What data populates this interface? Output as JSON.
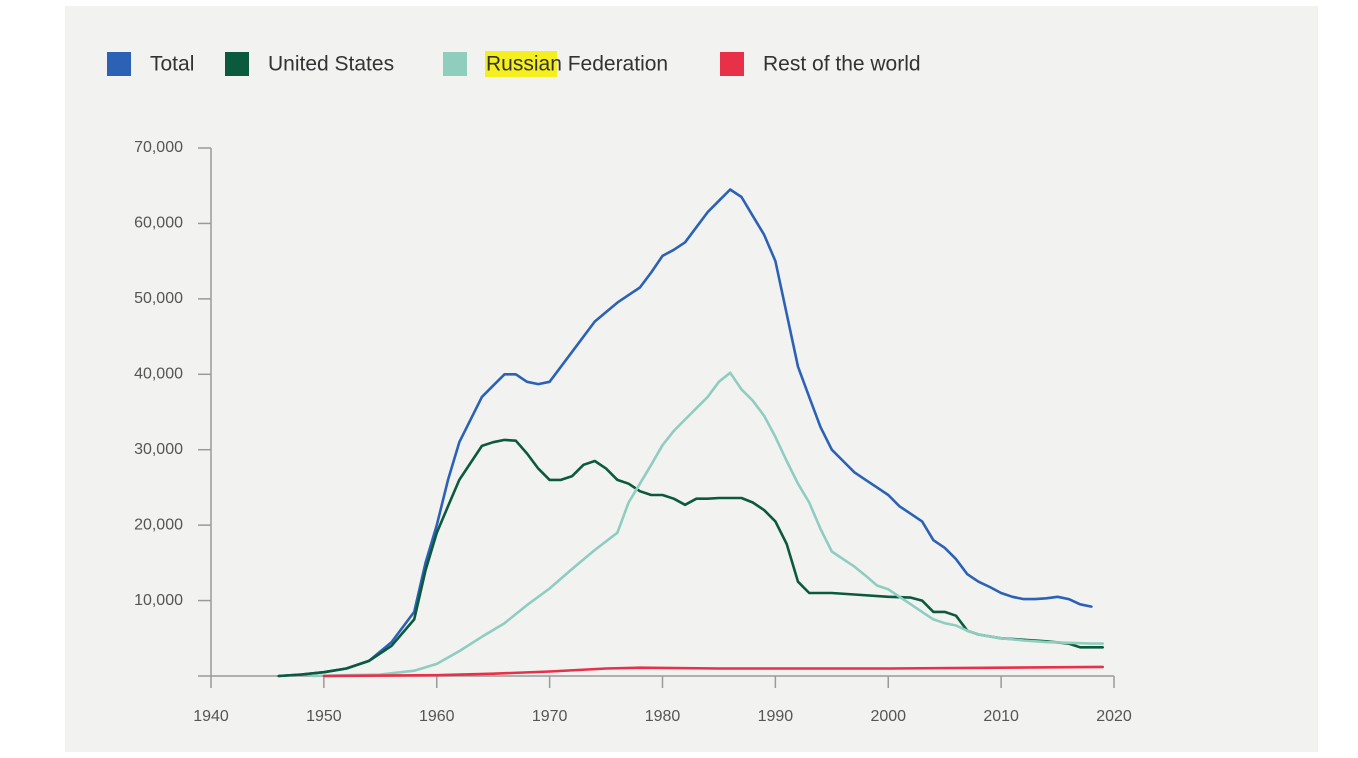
{
  "chart_data": {
    "type": "line",
    "xlim": [
      1940,
      2020
    ],
    "xticks": [
      1940,
      1950,
      1960,
      1970,
      1980,
      1990,
      2000,
      2010,
      2020
    ],
    "ylim": [
      0,
      70000
    ],
    "yticks": [
      {
        "value": 10000,
        "label": "10,000"
      },
      {
        "value": 20000,
        "label": "20,000"
      },
      {
        "value": 30000,
        "label": "30,000"
      },
      {
        "value": 40000,
        "label": "40,000"
      },
      {
        "value": 50000,
        "label": "50,000"
      },
      {
        "value": 60000,
        "label": "60,000"
      },
      {
        "value": 70000,
        "label": "70,000"
      }
    ],
    "legend": "top-left",
    "series": [
      {
        "name": "Total",
        "color": "#2b62b5",
        "x": [
          1946,
          1948,
          1950,
          1952,
          1954,
          1956,
          1958,
          1959,
          1960,
          1961,
          1962,
          1964,
          1965,
          1966,
          1967,
          1968,
          1969,
          1970,
          1972,
          1974,
          1976,
          1978,
          1979,
          1980,
          1981,
          1982,
          1983,
          1984,
          1985,
          1986,
          1987,
          1988,
          1989,
          1990,
          1991,
          1992,
          1993,
          1994,
          1995,
          1996,
          1997,
          1998,
          1999,
          2000,
          2001,
          2002,
          2003,
          2004,
          2005,
          2006,
          2007,
          2008,
          2009,
          2010,
          2011,
          2012,
          2013,
          2014,
          2015,
          2016,
          2017,
          2018
        ],
        "values": [
          0,
          200,
          500,
          1000,
          2000,
          4500,
          8500,
          15000,
          20000,
          26000,
          31000,
          37000,
          38500,
          40000,
          40000,
          39000,
          38700,
          39000,
          43000,
          47000,
          49500,
          51500,
          53500,
          55700,
          56500,
          57500,
          59500,
          61500,
          63000,
          64500,
          63500,
          61000,
          58500,
          55000,
          48000,
          41000,
          37000,
          33000,
          30000,
          28500,
          27000,
          26000,
          25000,
          24000,
          22500,
          21500,
          20500,
          18000,
          17000,
          15500,
          13500,
          12500,
          11800,
          11000,
          10500,
          10200,
          10200,
          10300,
          10500,
          10200,
          9500,
          9200
        ]
      },
      {
        "name": "United States",
        "color": "#0b5a3d",
        "x": [
          1946,
          1948,
          1950,
          1952,
          1954,
          1956,
          1958,
          1959,
          1960,
          1961,
          1962,
          1964,
          1965,
          1966,
          1967,
          1968,
          1969,
          1970,
          1971,
          1972,
          1973,
          1974,
          1975,
          1976,
          1977,
          1978,
          1979,
          1980,
          1981,
          1982,
          1983,
          1984,
          1985,
          1986,
          1987,
          1988,
          1989,
          1990,
          1991,
          1992,
          1993,
          1995,
          1997,
          2000,
          2002,
          2003,
          2004,
          2005,
          2006,
          2007,
          2008,
          2010,
          2012,
          2014,
          2016,
          2017,
          2019
        ],
        "values": [
          0,
          200,
          500,
          1000,
          2000,
          4000,
          7500,
          14000,
          19000,
          22500,
          26000,
          30500,
          31000,
          31300,
          31200,
          29500,
          27500,
          26000,
          26000,
          26500,
          28000,
          28500,
          27500,
          26000,
          25500,
          24500,
          24000,
          24000,
          23500,
          22700,
          23500,
          23500,
          23600,
          23600,
          23600,
          23000,
          22000,
          20500,
          17500,
          12500,
          11000,
          11000,
          10800,
          10500,
          10400,
          10000,
          8500,
          8500,
          8000,
          6000,
          5500,
          5000,
          4800,
          4600,
          4300,
          3800,
          3800
        ]
      },
      {
        "name": "Russian Federation",
        "color": "#8fcdbf",
        "x": [
          1949,
          1952,
          1955,
          1958,
          1960,
          1962,
          1964,
          1966,
          1968,
          1970,
          1972,
          1974,
          1976,
          1977,
          1978,
          1979,
          1980,
          1981,
          1982,
          1983,
          1984,
          1985,
          1986,
          1987,
          1988,
          1989,
          1990,
          1991,
          1992,
          1993,
          1994,
          1995,
          1996,
          1997,
          1998,
          1999,
          2000,
          2001,
          2002,
          2003,
          2004,
          2005,
          2006,
          2007,
          2008,
          2010,
          2012,
          2014,
          2016,
          2018,
          2019
        ],
        "values": [
          0,
          100,
          200,
          700,
          1600,
          3300,
          5200,
          7000,
          9400,
          11600,
          14200,
          16700,
          19000,
          23000,
          25500,
          28000,
          30600,
          32500,
          34000,
          35500,
          37000,
          39000,
          40200,
          38000,
          36500,
          34500,
          31700,
          28500,
          25500,
          23000,
          19500,
          16500,
          15500,
          14500,
          13300,
          12000,
          11500,
          10500,
          9500,
          8500,
          7500,
          7000,
          6700,
          6000,
          5500,
          5000,
          4700,
          4500,
          4400,
          4300,
          4300
        ]
      },
      {
        "name": "Rest of the world",
        "color": "#e83048",
        "x": [
          1950,
          1960,
          1965,
          1970,
          1975,
          1978,
          1985,
          1990,
          2000,
          2010,
          2019
        ],
        "values": [
          0,
          100,
          300,
          600,
          1000,
          1100,
          1000,
          1000,
          1000,
          1100,
          1200
        ]
      }
    ]
  }
}
